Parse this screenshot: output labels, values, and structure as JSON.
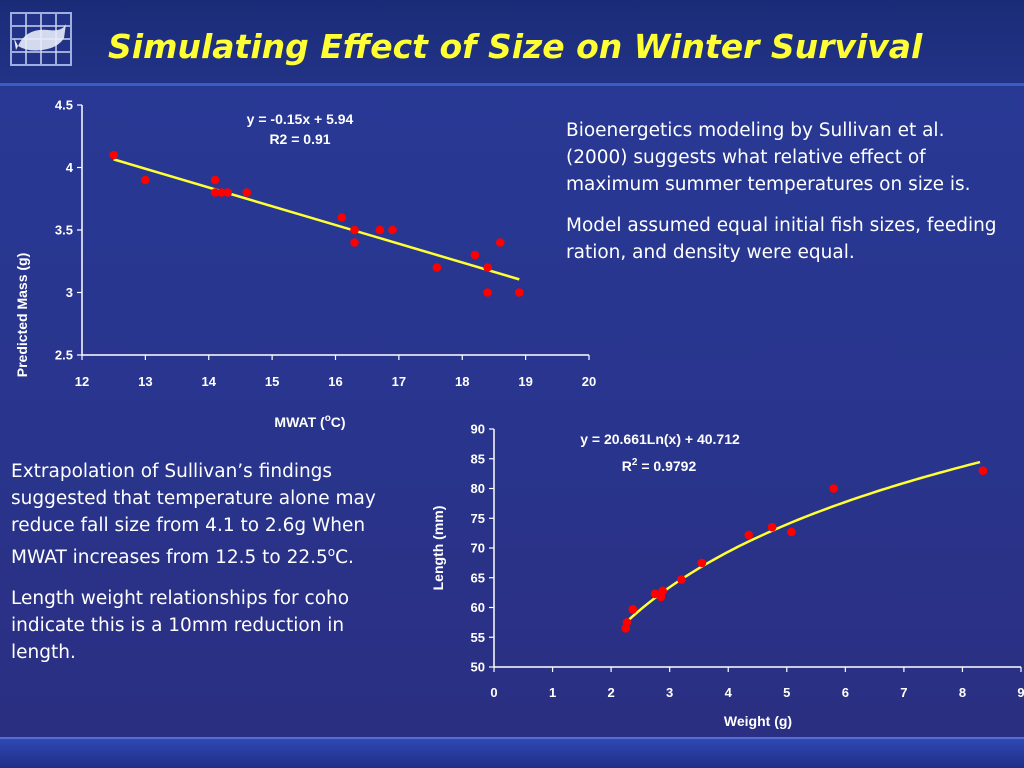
{
  "header": {
    "title": "Simulating Effect of Size on Winter Survival",
    "logo_icon": "fish-grid-logo-icon"
  },
  "colors": {
    "title": "#ffff33",
    "background": "#29348c",
    "point": "#ff0000",
    "trendline": "#ffff33"
  },
  "text_top_right": {
    "p1": "Bioenergetics modeling by Sullivan et al. (2000) suggests what relative effect of maximum summer temperatures on size is.",
    "p2": "Model assumed equal initial fish sizes, feeding ration, and density were equal."
  },
  "text_bottom_left": {
    "p1_pre": "Extrapolation of Sullivan’s findings suggested that temperature alone may reduce fall size from 4.1 to 2.6g When MWAT increases from 12.5 to 22.5",
    "p1_sup": "o",
    "p1_post": "C.",
    "p2": "Length weight relationships for coho indicate this is a 10mm reduction in length."
  },
  "chart_data": [
    {
      "type": "scatter",
      "xlabel": "MWAT (°C)",
      "xlabel_pre": "MWAT (",
      "xlabel_sup": "o",
      "xlabel_post": "C)",
      "ylabel": "Predicted Mass (g)",
      "xlim": [
        12,
        20
      ],
      "ylim": [
        2.5,
        4.5
      ],
      "xticks": [
        "12",
        "13",
        "14",
        "15",
        "16",
        "17",
        "18",
        "19",
        "20"
      ],
      "yticks": [
        "2.5",
        "3",
        "3.5",
        "4",
        "4.5"
      ],
      "grid": false,
      "equation": "y = -0.15x + 5.94",
      "r2_label": "R2 = 0.91",
      "points": [
        [
          12.5,
          4.1
        ],
        [
          13.0,
          3.9
        ],
        [
          14.1,
          3.9
        ],
        [
          14.1,
          3.8
        ],
        [
          14.2,
          3.8
        ],
        [
          14.3,
          3.8
        ],
        [
          14.6,
          3.8
        ],
        [
          16.1,
          3.6
        ],
        [
          16.3,
          3.5
        ],
        [
          16.3,
          3.4
        ],
        [
          16.7,
          3.5
        ],
        [
          16.9,
          3.5
        ],
        [
          17.6,
          3.2
        ],
        [
          18.2,
          3.3
        ],
        [
          18.4,
          3.2
        ],
        [
          18.4,
          3.0
        ],
        [
          18.6,
          3.4
        ],
        [
          18.9,
          3.0
        ]
      ],
      "trendline": {
        "kind": "linear",
        "slope": -0.15,
        "intercept": 5.94,
        "x_range": [
          12.5,
          18.9
        ]
      }
    },
    {
      "type": "scatter",
      "xlabel": "Weight (g)",
      "ylabel": "Length (mm)",
      "xlim": [
        0,
        9
      ],
      "ylim": [
        50,
        90
      ],
      "xticks": [
        "0",
        "1",
        "2",
        "3",
        "4",
        "5",
        "6",
        "7",
        "8",
        "9"
      ],
      "yticks": [
        "50",
        "55",
        "60",
        "65",
        "70",
        "75",
        "80",
        "85",
        "90"
      ],
      "grid": false,
      "equation": "y = 20.661Ln(x) + 40.712",
      "r2_label_pre": "R",
      "r2_label_sup": "2",
      "r2_label_post": " = 0.9792",
      "points": [
        [
          2.25,
          56.5
        ],
        [
          2.27,
          57.5
        ],
        [
          2.37,
          59.7
        ],
        [
          2.75,
          62.3
        ],
        [
          2.85,
          61.8
        ],
        [
          2.88,
          62.8
        ],
        [
          3.2,
          64.7
        ],
        [
          3.55,
          67.5
        ],
        [
          4.35,
          72.2
        ],
        [
          4.75,
          73.5
        ],
        [
          5.08,
          72.7
        ],
        [
          5.8,
          80.0
        ],
        [
          8.35,
          83.0
        ]
      ],
      "trendline": {
        "kind": "log",
        "a": 20.661,
        "b": 40.712,
        "x_range": [
          2.25,
          8.3
        ]
      }
    }
  ]
}
